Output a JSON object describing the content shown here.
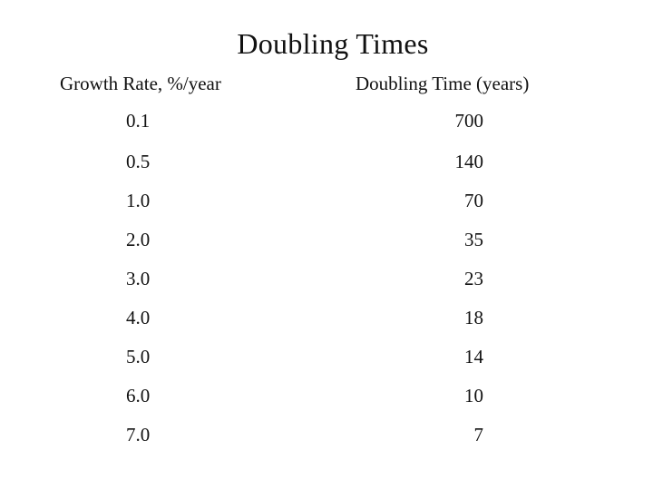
{
  "title": "Doubling Times",
  "table": {
    "headers": {
      "growth_rate": "Growth Rate, %/year",
      "doubling_time": "Doubling Time (years)"
    },
    "rows": [
      {
        "rate": "0.1",
        "time": "700"
      },
      {
        "rate": "0.5",
        "time": "140"
      },
      {
        "rate": "1.0",
        "time": "70"
      },
      {
        "rate": "2.0",
        "time": "35"
      },
      {
        "rate": "3.0",
        "time": "23"
      },
      {
        "rate": "4.0",
        "time": "18"
      },
      {
        "rate": "5.0",
        "time": "14"
      },
      {
        "rate": "6.0",
        "time": "10"
      },
      {
        "rate": "7.0",
        "time": "7"
      }
    ]
  }
}
